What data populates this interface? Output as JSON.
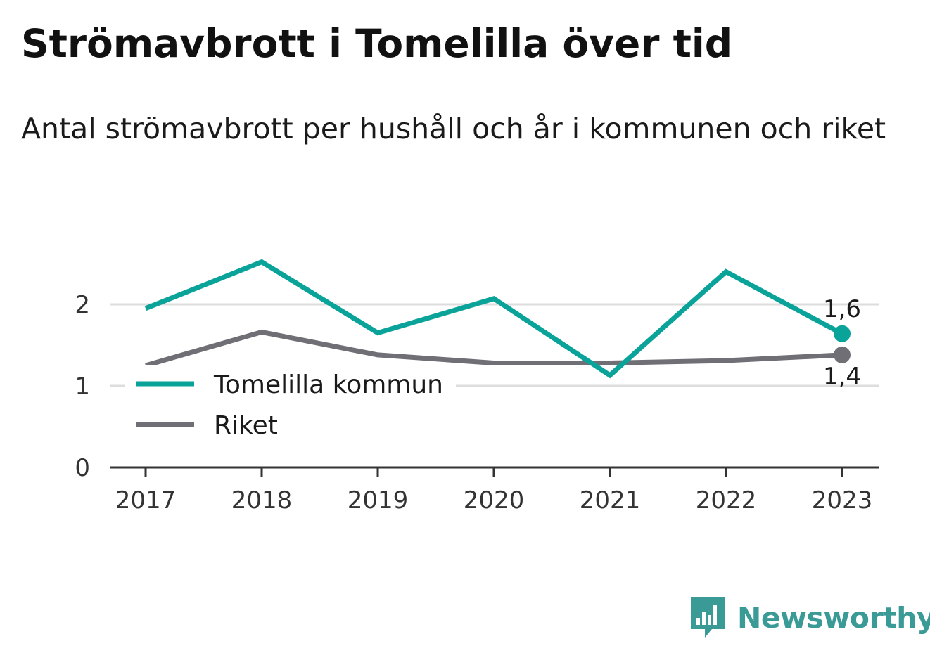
{
  "header": {
    "title": "Strömavbrott i Tomelilla över tid",
    "subtitle": "Antal strömavbrott per hushåll och år i kommunen och riket"
  },
  "chart_data": {
    "type": "line",
    "x": [
      "2017",
      "2018",
      "2019",
      "2020",
      "2021",
      "2022",
      "2023"
    ],
    "series": [
      {
        "name": "Tomelilla kommun",
        "color": "#0aa39a",
        "values": [
          1.95,
          2.52,
          1.65,
          2.07,
          1.13,
          2.4,
          1.64
        ],
        "end_label": "1,6"
      },
      {
        "name": "Riket",
        "color": "#706f75",
        "values": [
          1.25,
          1.66,
          1.38,
          1.28,
          1.28,
          1.31,
          1.38
        ],
        "end_label": "1,4"
      }
    ],
    "yticks": [
      {
        "value": 0,
        "label": "0"
      },
      {
        "value": 1,
        "label": "1"
      },
      {
        "value": 2,
        "label": "2"
      }
    ],
    "ylim": [
      0,
      2.6
    ],
    "grid": true,
    "legend_position": "bottom-left"
  },
  "brand": {
    "name": "Newsworthy",
    "color": "#3a9a96",
    "icon": "bar-chart-speech-bubble-icon"
  }
}
